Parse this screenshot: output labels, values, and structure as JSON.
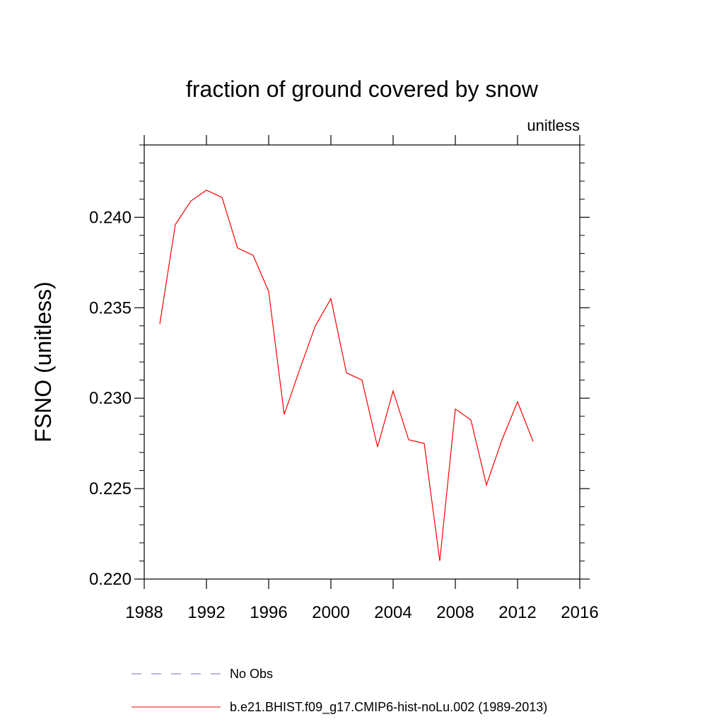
{
  "chart_data": {
    "type": "line",
    "title": "fraction of ground covered by snow",
    "units_label": "unitless",
    "xlabel": "",
    "ylabel": "FSNO  (unitless)",
    "xlim": [
      1988,
      2016
    ],
    "ylim": [
      0.22,
      0.244
    ],
    "xticks": [
      1988,
      1992,
      1996,
      2000,
      2004,
      2008,
      2012,
      2016
    ],
    "xtick_labels": [
      "1988",
      "1992",
      "1996",
      "2000",
      "2004",
      "2008",
      "2012",
      "2016"
    ],
    "yticks": [
      0.22,
      0.225,
      0.23,
      0.235,
      0.24
    ],
    "ytick_labels": [
      "0.220",
      "0.225",
      "0.230",
      "0.235",
      "0.240"
    ],
    "x": [
      1989,
      1990,
      1991,
      1992,
      1993,
      1994,
      1995,
      1996,
      1997,
      1998,
      1999,
      2000,
      2001,
      2002,
      2003,
      2004,
      2005,
      2006,
      2007,
      2008,
      2009,
      2010,
      2011,
      2012,
      2013
    ],
    "series": [
      {
        "name": "b.e21.BHIST.f09_g17.CMIP6-hist-noLu.002 (1989-2013)",
        "color": "#ff0000",
        "style": "solid",
        "values": [
          0.2341,
          0.2396,
          0.2409,
          0.2415,
          0.2411,
          0.2383,
          0.2379,
          0.2359,
          0.2291,
          0.2316,
          0.234,
          0.2355,
          0.2314,
          0.231,
          0.2273,
          0.2304,
          0.2277,
          0.2275,
          0.221,
          0.2294,
          0.2288,
          0.2252,
          0.2277,
          0.2298,
          0.2276
        ]
      }
    ],
    "legend": [
      {
        "label": "No Obs",
        "color": "#7b68c8",
        "style": "dashed"
      },
      {
        "label": "b.e21.BHIST.f09_g17.CMIP6-hist-noLu.002 (1989-2013)",
        "color": "#ff0000",
        "style": "solid"
      }
    ],
    "legend_position": "bottom",
    "grid": false
  }
}
